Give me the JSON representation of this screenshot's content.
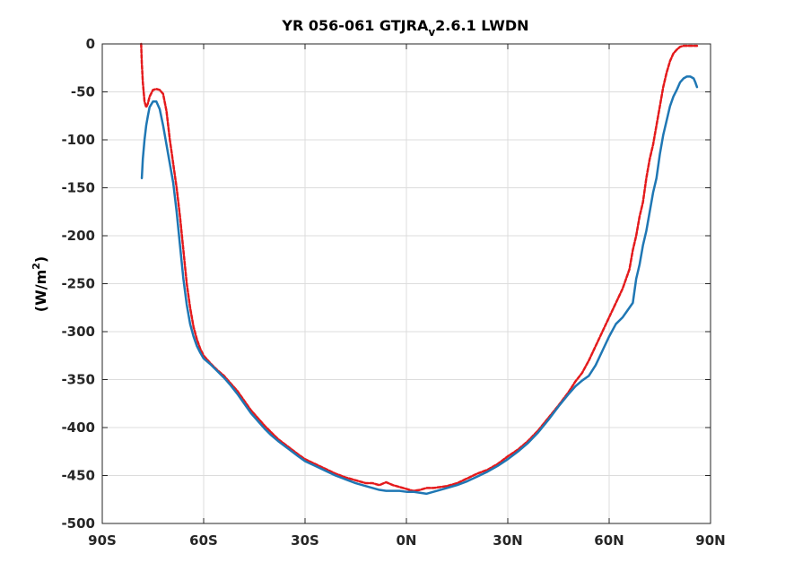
{
  "chart_data": {
    "type": "line",
    "title": {
      "prefix": "YR 056-061 GTJRA",
      "subscript": "v",
      "suffix": "2.6.1 LWDN"
    },
    "xlabel": "",
    "ylabel": {
      "main": "(W/m",
      "superscript": "2",
      "close": ")"
    },
    "xlim": [
      -90,
      90
    ],
    "ylim": [
      -500,
      0
    ],
    "grid": true,
    "legend": "none",
    "x_ticks": [
      {
        "value": -90,
        "label": "90S"
      },
      {
        "value": -60,
        "label": "60S"
      },
      {
        "value": -30,
        "label": "30S"
      },
      {
        "value": 0,
        "label": "0N"
      },
      {
        "value": 30,
        "label": "30N"
      },
      {
        "value": 60,
        "label": "60N"
      },
      {
        "value": 90,
        "label": "90N"
      }
    ],
    "y_ticks": [
      {
        "value": 0,
        "label": "0"
      },
      {
        "value": -50,
        "label": "-50"
      },
      {
        "value": -100,
        "label": "-100"
      },
      {
        "value": -150,
        "label": "-150"
      },
      {
        "value": -200,
        "label": "-200"
      },
      {
        "value": -250,
        "label": "-250"
      },
      {
        "value": -300,
        "label": "-300"
      },
      {
        "value": -350,
        "label": "-350"
      },
      {
        "value": -400,
        "label": "-400"
      },
      {
        "value": -450,
        "label": "-450"
      },
      {
        "value": -500,
        "label": "-500"
      }
    ],
    "series": [
      {
        "color": "#e41a1c",
        "style": "dashed",
        "x": [
          -78.5,
          -78.3,
          -78.0,
          -77.5,
          -77.0,
          -76.5,
          -76.0,
          -75.0,
          -74.0,
          -73.0,
          -72.0,
          -71.0,
          -70.0,
          -69.0,
          -68.0,
          -67.0,
          -66.0,
          -65.0,
          -64.0,
          -63.0,
          -62.0,
          -61.0,
          -60.0,
          -58.0,
          -56.0,
          -54.0,
          -52.0,
          -50.0,
          -48.0,
          -46.0,
          -44.0,
          -42.0,
          -40.0,
          -38.0,
          -35.0,
          -32.0,
          -30.0,
          -27.0,
          -24.0,
          -21.0,
          -18.0,
          -15.0,
          -12.0,
          -10.0,
          -8.0,
          -6.0,
          -4.0,
          -2.0,
          0.0,
          2.0,
          4.0,
          6.0,
          8.0,
          10.0,
          12.0,
          15.0,
          18.0,
          21.0,
          24.0,
          27.0,
          30.0,
          33.0,
          36.0,
          39.0,
          42.0,
          45.0,
          48.0,
          50.0,
          52.0,
          54.0,
          56.0,
          58.0,
          60.0,
          62.0,
          64.0,
          65.0,
          66.0,
          67.0,
          68.0,
          69.0,
          70.0,
          71.0,
          72.0,
          73.0,
          74.0,
          75.0,
          76.0,
          77.0,
          78.0,
          79.0,
          80.0,
          81.0,
          82.0,
          83.0,
          84.0,
          85.0,
          86.0
        ],
        "values": [
          0,
          -20,
          -40,
          -60,
          -66,
          -62,
          -55,
          -48,
          -47,
          -48,
          -52,
          -70,
          -100,
          -125,
          -150,
          -180,
          -215,
          -250,
          -275,
          -295,
          -308,
          -318,
          -325,
          -333,
          -340,
          -346,
          -354,
          -362,
          -372,
          -382,
          -390,
          -398,
          -405,
          -412,
          -420,
          -428,
          -433,
          -438,
          -443,
          -448,
          -452,
          -455,
          -458,
          -458,
          -460,
          -457,
          -460,
          -462,
          -464,
          -466,
          -465,
          -463,
          -463,
          -462,
          -461,
          -458,
          -453,
          -448,
          -444,
          -438,
          -430,
          -423,
          -414,
          -403,
          -390,
          -377,
          -363,
          -352,
          -343,
          -330,
          -315,
          -300,
          -285,
          -270,
          -255,
          -245,
          -235,
          -215,
          -200,
          -180,
          -165,
          -140,
          -120,
          -105,
          -85,
          -65,
          -45,
          -30,
          -18,
          -10,
          -6,
          -3,
          -2,
          -2,
          -2,
          -2,
          -2
        ]
      },
      {
        "color": "#1f77b4",
        "style": "solid",
        "x": [
          -78.3,
          -78.0,
          -77.5,
          -77.0,
          -76.5,
          -76.0,
          -75.0,
          -74.0,
          -73.0,
          -72.0,
          -71.0,
          -70.0,
          -69.0,
          -68.0,
          -67.0,
          -66.0,
          -65.0,
          -64.0,
          -63.0,
          -62.0,
          -61.0,
          -60.0,
          -58.0,
          -56.0,
          -54.0,
          -52.0,
          -50.0,
          -48.0,
          -46.0,
          -44.0,
          -42.0,
          -40.0,
          -38.0,
          -35.0,
          -32.0,
          -30.0,
          -27.0,
          -24.0,
          -21.0,
          -18.0,
          -15.0,
          -12.0,
          -10.0,
          -8.0,
          -6.0,
          -4.0,
          -2.0,
          0.0,
          2.0,
          4.0,
          6.0,
          8.0,
          10.0,
          12.0,
          15.0,
          18.0,
          21.0,
          24.0,
          27.0,
          30.0,
          33.0,
          36.0,
          39.0,
          42.0,
          45.0,
          48.0,
          50.0,
          52.0,
          54.0,
          56.0,
          58.0,
          60.0,
          62.0,
          64.0,
          65.0,
          66.0,
          67.0,
          68.0,
          69.0,
          70.0,
          71.0,
          72.0,
          73.0,
          74.0,
          75.0,
          76.0,
          77.0,
          78.0,
          79.0,
          80.0,
          81.0,
          82.0,
          83.0,
          84.0,
          85.0,
          85.5,
          86.0
        ],
        "values": [
          -140,
          -120,
          -100,
          -85,
          -75,
          -66,
          -60,
          -60,
          -68,
          -85,
          -105,
          -125,
          -145,
          -175,
          -210,
          -245,
          -272,
          -292,
          -305,
          -315,
          -322,
          -328,
          -334,
          -341,
          -348,
          -356,
          -365,
          -375,
          -385,
          -393,
          -401,
          -408,
          -414,
          -422,
          -430,
          -435,
          -440,
          -445,
          -450,
          -454,
          -458,
          -461,
          -463,
          -465,
          -466,
          -466,
          -466,
          -467,
          -467,
          -468,
          -469,
          -467,
          -465,
          -463,
          -460,
          -456,
          -451,
          -446,
          -440,
          -433,
          -425,
          -416,
          -405,
          -392,
          -378,
          -365,
          -357,
          -351,
          -346,
          -335,
          -320,
          -305,
          -292,
          -285,
          -280,
          -275,
          -270,
          -245,
          -230,
          -210,
          -195,
          -175,
          -155,
          -140,
          -115,
          -95,
          -80,
          -65,
          -55,
          -48,
          -40,
          -36,
          -34,
          -34,
          -36,
          -40,
          -45
        ]
      }
    ]
  }
}
